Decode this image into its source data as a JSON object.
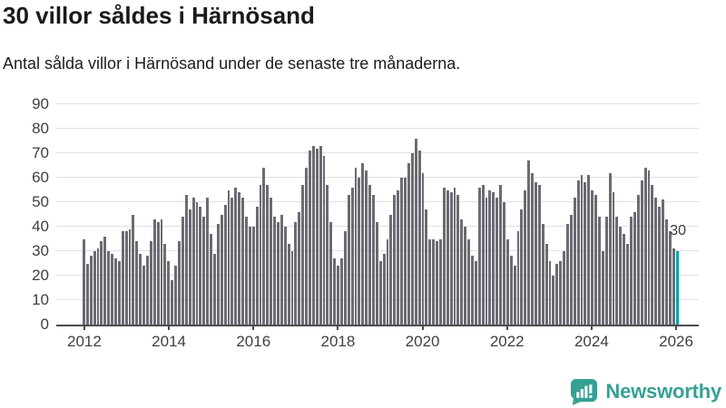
{
  "header": {
    "title": "30 villor såldes i Härnösand",
    "subtitle": "Antal sålda villor i Härnösand under de senaste tre månaderna."
  },
  "chart_data": {
    "type": "bar",
    "title": "30 villor såldes i Härnösand",
    "xlabel": "",
    "ylabel": "",
    "x_unit": "month",
    "x_range_labels": [
      "2012",
      "2026"
    ],
    "ylim": [
      0,
      90
    ],
    "grid": true,
    "legend": false,
    "y_ticks": [
      0,
      10,
      20,
      30,
      40,
      50,
      60,
      70,
      80,
      90
    ],
    "x_ticks": [
      {
        "label": "2012",
        "month_index": 0
      },
      {
        "label": "2014",
        "month_index": 24
      },
      {
        "label": "2016",
        "month_index": 48
      },
      {
        "label": "2018",
        "month_index": 72
      },
      {
        "label": "2020",
        "month_index": 96
      },
      {
        "label": "2022",
        "month_index": 120
      },
      {
        "label": "2024",
        "month_index": 144
      },
      {
        "label": "2026",
        "month_index": 168
      }
    ],
    "values": [
      35,
      25,
      28,
      30,
      31,
      34,
      36,
      30,
      29,
      27,
      26,
      38,
      38,
      39,
      45,
      34,
      29,
      24,
      28,
      34,
      43,
      42,
      43,
      33,
      26,
      18,
      24,
      34,
      44,
      53,
      47,
      52,
      50,
      48,
      44,
      52,
      37,
      29,
      41,
      45,
      49,
      55,
      52,
      56,
      54,
      52,
      44,
      40,
      40,
      48,
      57,
      64,
      57,
      52,
      44,
      42,
      45,
      40,
      33,
      30,
      42,
      46,
      57,
      64,
      71,
      73,
      72,
      73,
      69,
      57,
      42,
      27,
      24,
      27,
      38,
      53,
      56,
      64,
      60,
      66,
      63,
      57,
      53,
      42,
      26,
      29,
      35,
      45,
      53,
      55,
      60,
      60,
      66,
      70,
      76,
      71,
      62,
      47,
      35,
      35,
      34,
      35,
      56,
      55,
      54,
      56,
      53,
      43,
      40,
      35,
      28,
      26,
      56,
      57,
      52,
      55,
      54,
      52,
      57,
      50,
      35,
      28,
      24,
      38,
      47,
      55,
      67,
      62,
      58,
      57,
      41,
      33,
      26,
      20,
      25,
      26,
      30,
      41,
      45,
      52,
      59,
      61,
      58,
      61,
      55,
      53,
      44,
      30,
      44,
      62,
      54,
      44,
      40,
      37,
      33,
      44,
      46,
      53,
      59,
      64,
      63,
      57,
      52,
      48,
      51,
      43,
      38,
      31,
      30
    ],
    "highlight_last": true,
    "highlight_value_label": "30",
    "bar_color": "#6b6b73",
    "highlight_color": "#00a5a2",
    "grid_color": "#e0e0e0",
    "axis_color": "#4d4d4d"
  },
  "footer": {
    "brand": "Newsworthy",
    "brand_color": "#35a193",
    "logo_icon": "bar-chart-speech-bubble-icon"
  }
}
